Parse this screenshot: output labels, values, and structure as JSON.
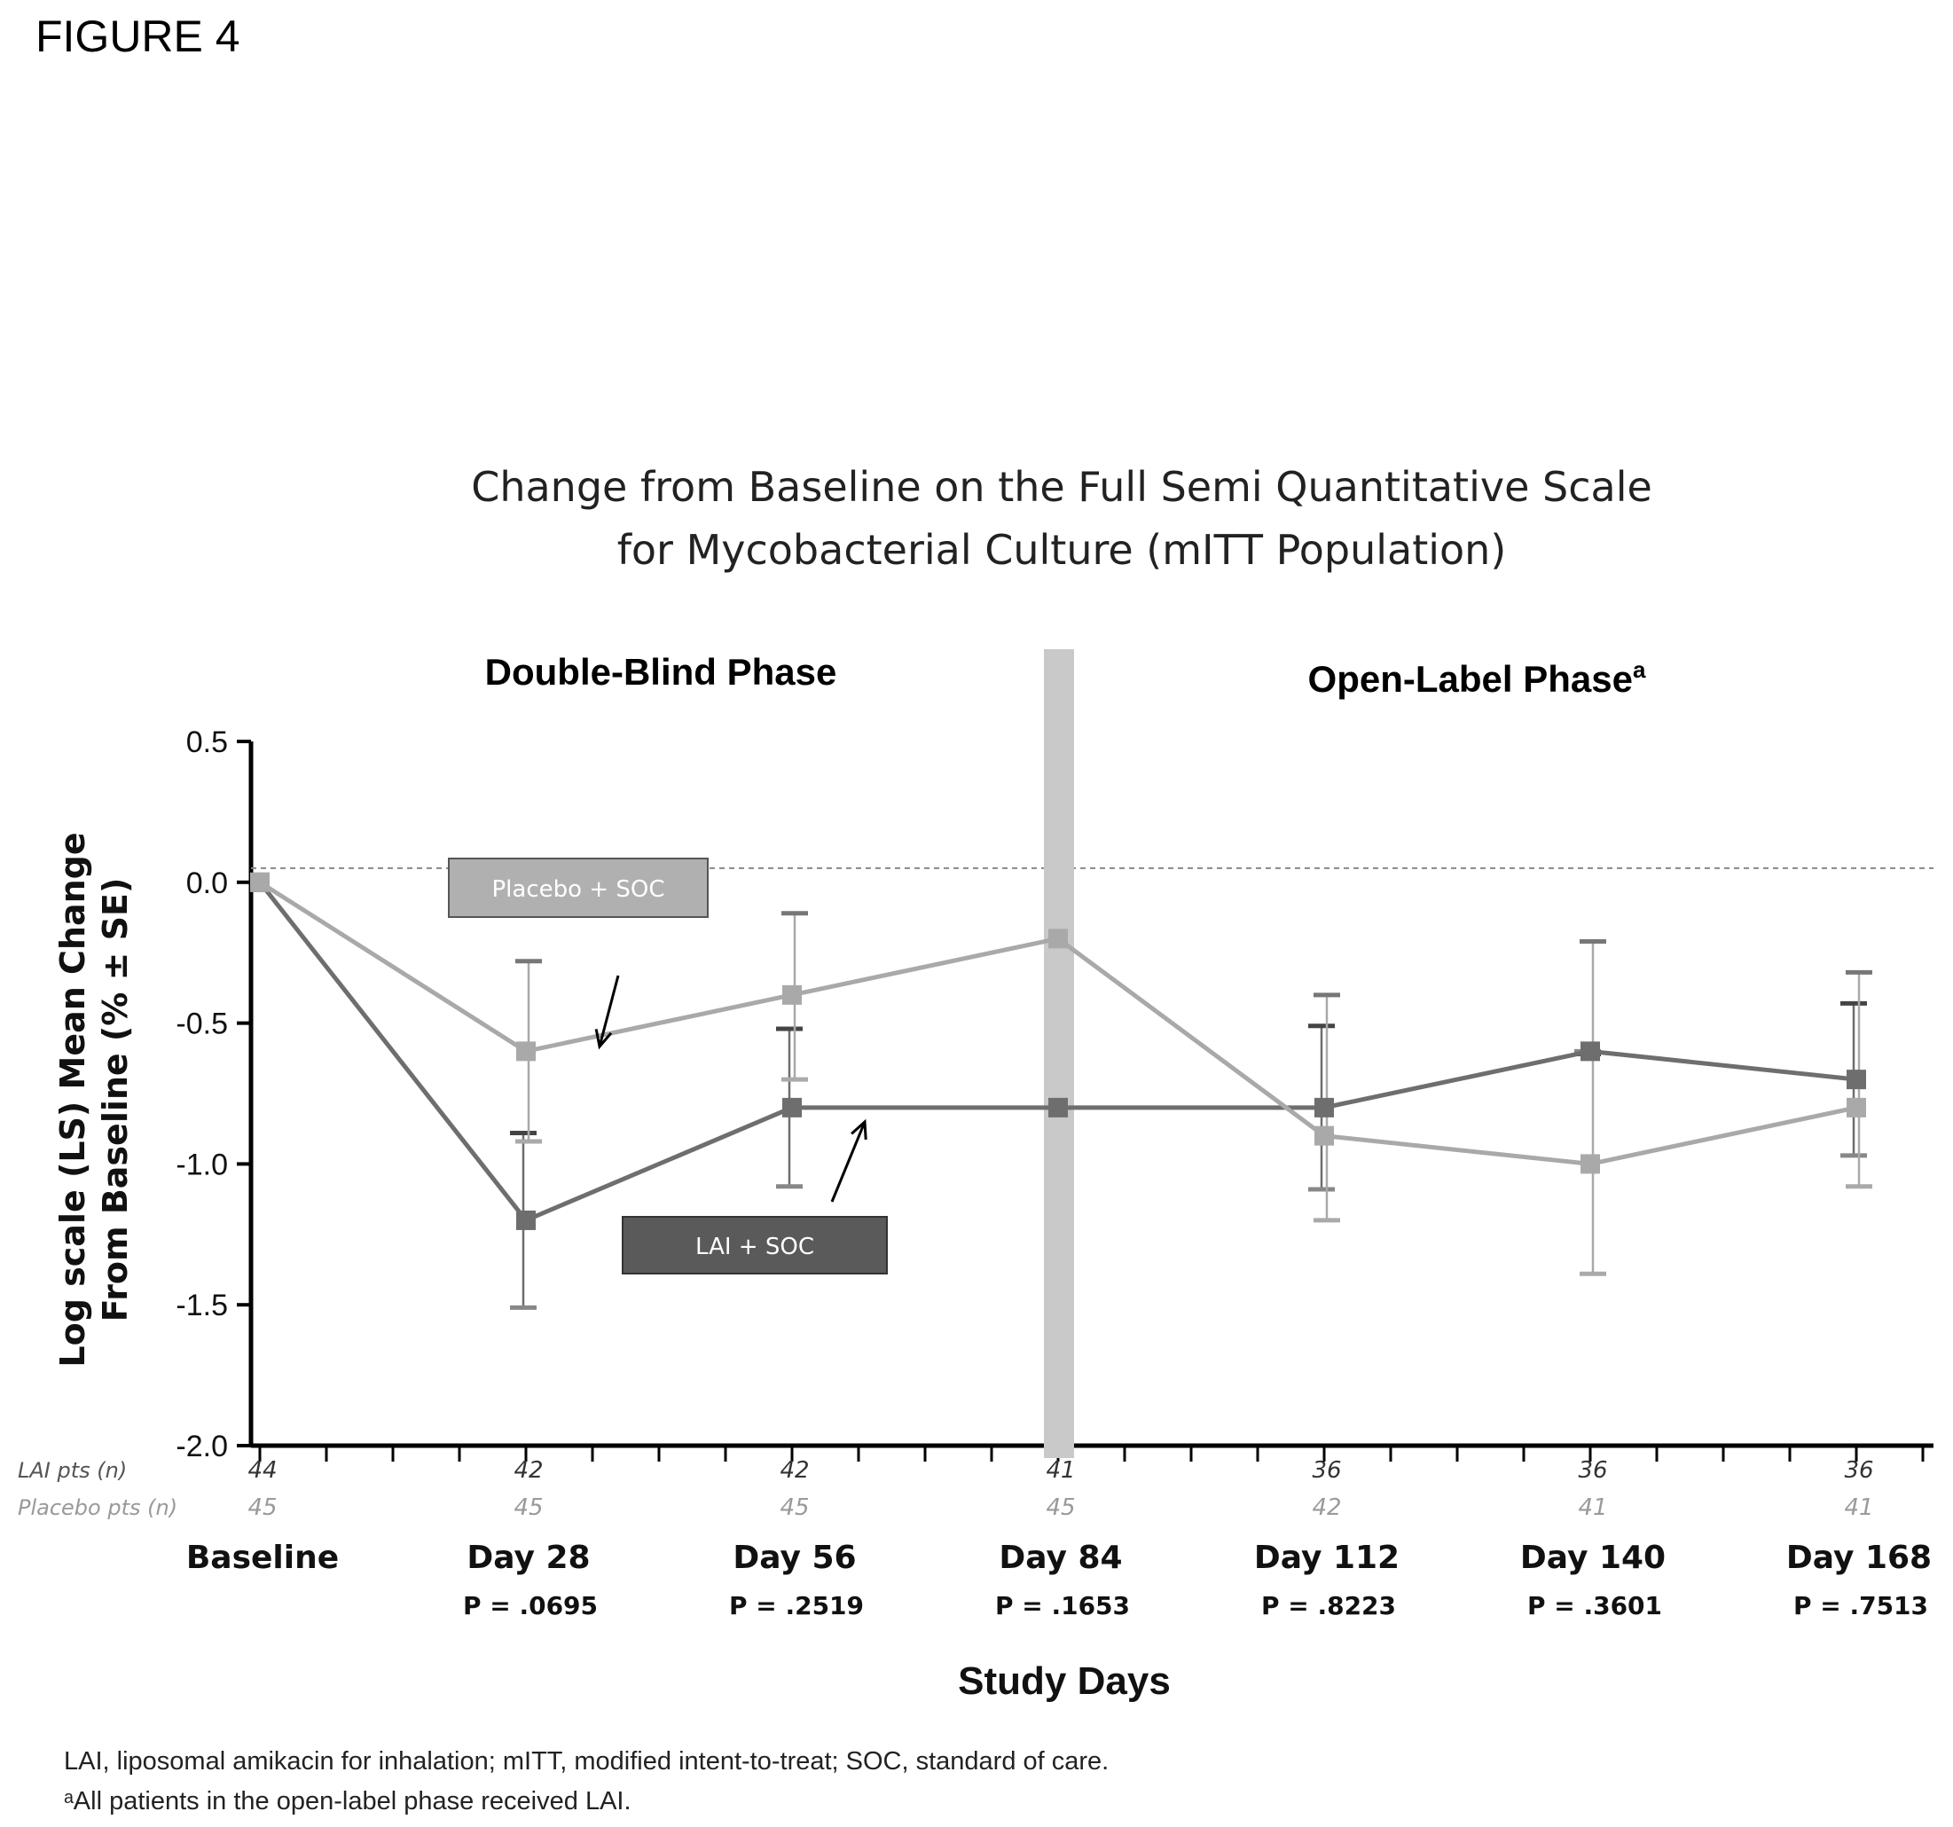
{
  "figure_label": "FIGURE 4",
  "footnotes": [
    "LAI, liposomal amikacin for inhalation; mITT, modified intent-to-treat; SOC, standard of care.",
    "ᵃAll patients in the open-label phase received LAI."
  ],
  "colors": {
    "lai": "#6e6e6e",
    "placebo": "#a9a9a9",
    "divider": "#c9c9c9",
    "lai_legend_box": "#5a5a5a",
    "placebo_legend_box": "#b0b0b0"
  },
  "chart_data": {
    "type": "line",
    "title": "Change from Baseline on the Full Semi Quantitative Scale for Mycobacterial Culture (mITT Population)",
    "title_lines": [
      "Change from Baseline on the Full Semi Quantitative Scale",
      "for Mycobacterial Culture (mITT Population)"
    ],
    "phases": [
      {
        "label": "Double-Blind Phase",
        "sup": ""
      },
      {
        "label": "Open-Label  Phase",
        "sup": "a"
      }
    ],
    "divider_between": [
      "Day 84"
    ],
    "ylabel_lines": [
      "Log scale (LS) Mean Change",
      "From Baseline (% ± SE)"
    ],
    "xlabel": "Study Days",
    "ylim": [
      -2.0,
      0.5
    ],
    "yticks": [
      "0.5",
      "0.0",
      "-0.5",
      "-1.0",
      "-1.5",
      "-2.0"
    ],
    "ytick_values": [
      0.5,
      0.0,
      -0.5,
      -1.0,
      -1.5,
      -2.0
    ],
    "reference_line": 0.05,
    "categories": [
      "Baseline",
      "Day 28",
      "Day 56",
      "Day 84",
      "Day 112",
      "Day 140",
      "Day 168"
    ],
    "p_values": [
      "",
      "P = .0695",
      "P = .2519",
      "P = .1653",
      "P = .8223",
      "P = .3601",
      "P = .7513"
    ],
    "series": [
      {
        "name": "LAI + SOC",
        "values": [
          0.0,
          -1.2,
          -0.8,
          -0.8,
          -0.8,
          -0.6,
          -0.7
        ],
        "error_upper": [
          null,
          -0.89,
          -0.52,
          null,
          -0.51,
          -0.61,
          -0.43
        ],
        "error_lower": [
          null,
          -1.51,
          -1.08,
          null,
          -1.09,
          -0.6,
          -0.97
        ]
      },
      {
        "name": "Placebo + SOC",
        "values": [
          0.0,
          -0.6,
          -0.4,
          -0.2,
          -0.9,
          -1.0,
          -0.8
        ],
        "error_upper": [
          null,
          -0.28,
          -0.11,
          null,
          -0.4,
          -0.21,
          -0.32
        ],
        "error_lower": [
          null,
          -0.92,
          -0.7,
          null,
          -1.2,
          -1.39,
          -1.08
        ]
      }
    ],
    "n_rows": [
      {
        "label": "LAI pts (n)",
        "values": [
          "44",
          "42",
          "42",
          "41",
          "36",
          "36",
          "36"
        ]
      },
      {
        "label": "Placebo pts (n)",
        "values": [
          "45",
          "45",
          "45",
          "45",
          "42",
          "41",
          "41"
        ]
      }
    ],
    "legend": [
      "Placebo + SOC",
      "LAI + SOC"
    ],
    "grid": false
  }
}
